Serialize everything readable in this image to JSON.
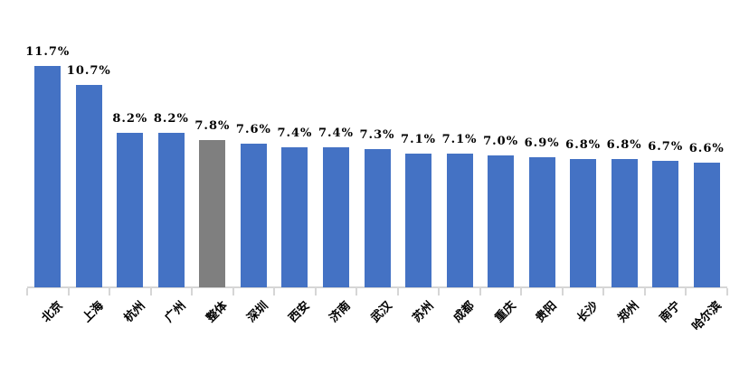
{
  "page": {
    "background": "#ffffff"
  },
  "chart_data": {
    "type": "bar",
    "title": "",
    "xlabel": "",
    "ylabel": "",
    "categories": [
      "北京",
      "上海",
      "杭州",
      "广州",
      "整体",
      "深圳",
      "西安",
      "济南",
      "武汉",
      "苏州",
      "成都",
      "重庆",
      "贵阳",
      "长沙",
      "郑州",
      "南宁",
      "哈尔滨"
    ],
    "values": [
      11.7,
      10.7,
      8.2,
      8.2,
      7.8,
      7.6,
      7.4,
      7.4,
      7.3,
      7.1,
      7.1,
      7.0,
      6.9,
      6.8,
      6.8,
      6.7,
      6.6
    ],
    "data_labels": [
      "11.7%",
      "10.7%",
      "8.2%",
      "8.2%",
      "7.8%",
      "7.6%",
      "7.4%",
      "7.4%",
      "7.3%",
      "7.1%",
      "7.1%",
      "7.0%",
      "6.9%",
      "6.8%",
      "6.8%",
      "6.7%",
      "6.6%"
    ],
    "highlight_category": "整体",
    "ylim": [
      0,
      12
    ],
    "yaxis_visible": false,
    "grid": false,
    "legend_position": "none",
    "colors": {
      "bar": "#4472c4",
      "highlight_bar": "#7f7f7f",
      "axis": "#d6d6d6",
      "label_text": "#000000"
    }
  }
}
